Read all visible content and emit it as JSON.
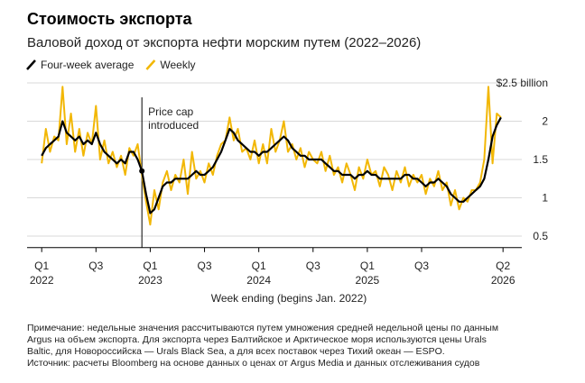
{
  "chart_data": {
    "type": "line",
    "title": "Стоимость экспорта",
    "subtitle": "Валовой доход от экспорта нефти морским путем (2022–2026)",
    "x_label": "Week ending (begins Jan. 2022)",
    "annotation": [
      "Price cap",
      "introduced"
    ],
    "annotation_x": 48,
    "x": [
      0,
      2,
      4,
      6,
      8,
      10,
      12,
      14,
      16,
      18,
      20,
      22,
      24,
      26,
      28,
      30,
      32,
      34,
      36,
      38,
      40,
      42,
      44,
      46,
      48,
      50,
      52,
      54,
      56,
      58,
      60,
      62,
      64,
      66,
      68,
      70,
      72,
      74,
      76,
      78,
      80,
      82,
      84,
      86,
      88,
      90,
      92,
      94,
      96,
      98,
      100,
      102,
      104,
      106,
      108,
      110,
      112,
      114,
      116,
      118,
      120,
      122,
      124,
      126,
      128,
      130,
      132,
      134,
      136,
      138,
      140,
      142,
      144,
      146,
      148,
      150,
      152,
      154,
      156,
      158,
      160,
      162,
      164,
      166,
      168,
      170,
      172,
      174,
      176,
      178,
      180,
      182,
      184,
      186,
      188,
      190,
      192,
      194,
      196,
      198,
      200,
      202,
      204,
      206,
      208,
      210,
      212,
      214,
      216,
      218,
      220
    ],
    "series": [
      {
        "name": "Four-week average",
        "color": "#000000",
        "values": [
          1.55,
          1.65,
          1.7,
          1.75,
          1.8,
          2.0,
          1.85,
          1.8,
          1.75,
          1.8,
          1.7,
          1.75,
          1.7,
          1.85,
          1.7,
          1.6,
          1.55,
          1.5,
          1.45,
          1.5,
          1.45,
          1.6,
          1.6,
          1.5,
          1.35,
          1.05,
          0.8,
          0.85,
          1.0,
          1.15,
          1.2,
          1.2,
          1.25,
          1.25,
          1.25,
          1.25,
          1.3,
          1.35,
          1.3,
          1.3,
          1.35,
          1.4,
          1.5,
          1.6,
          1.75,
          1.9,
          1.85,
          1.75,
          1.7,
          1.65,
          1.6,
          1.6,
          1.55,
          1.6,
          1.6,
          1.65,
          1.7,
          1.75,
          1.8,
          1.75,
          1.65,
          1.6,
          1.55,
          1.55,
          1.5,
          1.5,
          1.5,
          1.5,
          1.45,
          1.4,
          1.35,
          1.35,
          1.3,
          1.3,
          1.3,
          1.25,
          1.3,
          1.3,
          1.35,
          1.3,
          1.3,
          1.25,
          1.25,
          1.25,
          1.25,
          1.25,
          1.25,
          1.3,
          1.3,
          1.25,
          1.25,
          1.2,
          1.15,
          1.2,
          1.2,
          1.25,
          1.2,
          1.15,
          1.05,
          1.0,
          0.95,
          0.95,
          1.0,
          1.05,
          1.1,
          1.15,
          1.25,
          1.5,
          1.8,
          1.95,
          2.05
        ]
      },
      {
        "name": "Weekly",
        "color": "#f2b705",
        "values": [
          1.45,
          1.9,
          1.6,
          1.8,
          1.75,
          2.45,
          1.7,
          2.1,
          1.6,
          1.9,
          1.55,
          1.85,
          1.7,
          2.2,
          1.5,
          1.75,
          1.45,
          1.6,
          1.4,
          1.55,
          1.3,
          1.65,
          1.55,
          1.7,
          1.3,
          0.95,
          0.65,
          1.1,
          0.85,
          1.2,
          1.35,
          1.1,
          1.3,
          1.2,
          1.5,
          1.05,
          1.6,
          1.25,
          1.35,
          1.2,
          1.45,
          1.3,
          1.55,
          1.7,
          1.75,
          2.05,
          1.75,
          1.9,
          1.6,
          1.65,
          1.5,
          1.75,
          1.45,
          1.7,
          1.45,
          1.9,
          1.6,
          1.75,
          2.0,
          1.6,
          1.7,
          1.5,
          1.65,
          1.4,
          1.6,
          1.5,
          1.45,
          1.6,
          1.35,
          1.55,
          1.3,
          1.4,
          1.2,
          1.45,
          1.3,
          1.1,
          1.4,
          1.25,
          1.5,
          1.3,
          1.35,
          1.15,
          1.4,
          1.3,
          1.1,
          1.35,
          1.2,
          1.4,
          1.15,
          1.3,
          1.2,
          1.3,
          1.05,
          1.25,
          1.15,
          1.35,
          1.1,
          1.2,
          0.9,
          1.1,
          0.85,
          1.0,
          0.95,
          1.1,
          1.1,
          1.2,
          1.5,
          2.45,
          1.45,
          2.1,
          2.05
        ]
      }
    ],
    "xlim": [
      -7,
      230
    ],
    "xticks": [
      {
        "value": 0,
        "label": "Q1 2022"
      },
      {
        "value": 26,
        "label": "Q3"
      },
      {
        "value": 52,
        "label": "Q1 2023"
      },
      {
        "value": 78,
        "label": "Q3"
      },
      {
        "value": 104,
        "label": "Q1 2024"
      },
      {
        "value": 130,
        "label": "Q3"
      },
      {
        "value": 156,
        "label": "Q1 2025"
      },
      {
        "value": 182,
        "label": "Q3"
      },
      {
        "value": 221,
        "label": "Q2 2026"
      }
    ],
    "ylim": [
      0.35,
      2.6
    ],
    "yticks": [
      0.5,
      1.0,
      1.5,
      2.0,
      {
        "value": 2.5,
        "label": "$2.5 billion"
      }
    ],
    "grid": true,
    "note": [
      "Примечание: недельные значения рассчитываются путем умножения средней недельной цены по данным",
      "Argus на объем экспорта. Для экспорта через Балтийское и Арктическое моря используются цены Urals",
      "Baltic, для Новороссийска — Urals Black Sea, а для всех поставок через Тихий океан — ESPO."
    ],
    "source": "Источник: расчеты Bloomberg на основе данных о ценах от Argus Media и данных отслеживания судов"
  }
}
